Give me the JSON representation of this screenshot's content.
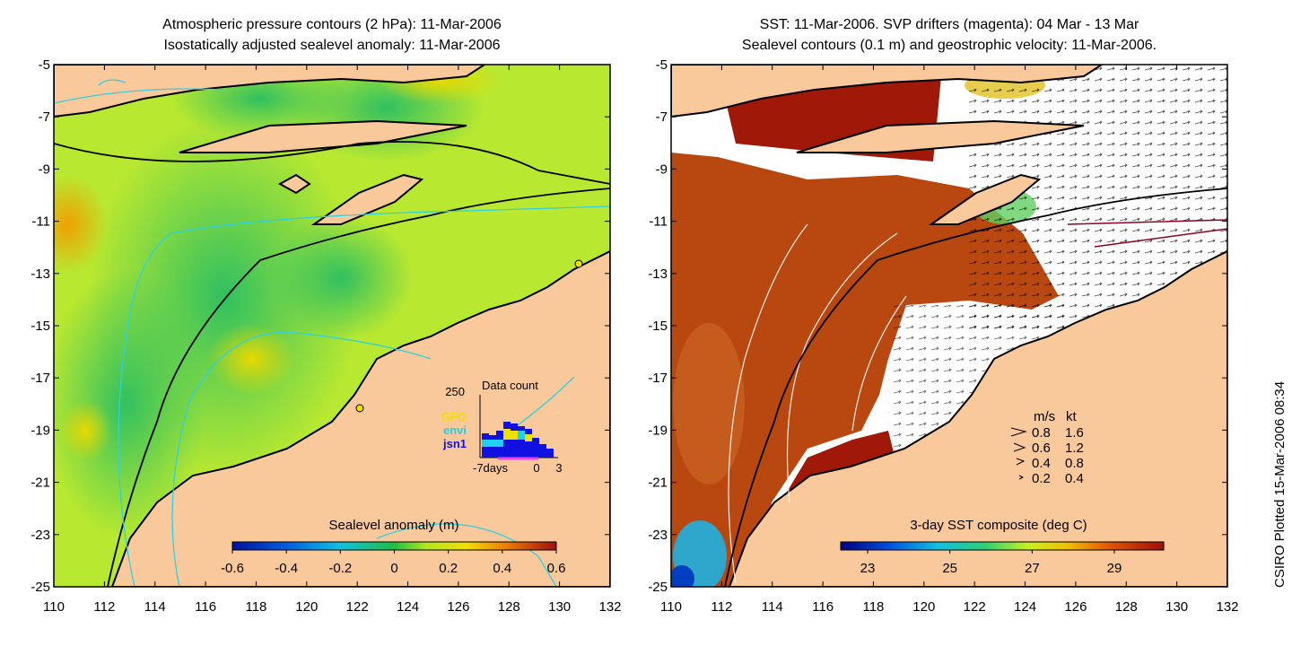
{
  "left_panel": {
    "title_line1": "Atmospheric pressure contours (2 hPa): 11-Mar-2006",
    "title_line2": "Isostatically adjusted sealevel anomaly: 11-Mar-2006",
    "colorbar_label": "Sealevel anomaly (m)",
    "colorbar_ticks": [
      "-0.6",
      "-0.4",
      "-0.2",
      "0",
      "0.2",
      "0.4",
      "0.6"
    ],
    "inset": {
      "max_label": "250",
      "title": "Data count",
      "legend": [
        {
          "name": "GFO",
          "color": "#f0e000"
        },
        {
          "name": "envi",
          "color": "#20d0f0"
        },
        {
          "name": "jsn1",
          "color": "#1010e0"
        }
      ],
      "xlabel_left": "-7days",
      "xlabel_mid": "0",
      "xlabel_right": "3"
    }
  },
  "right_panel": {
    "title_line1": "SST: 11-Mar-2006. SVP drifters (magenta): 04 Mar - 13 Mar",
    "title_line2": "Sealevel contours (0.1 m) and geostrophic velocity: 11-Mar-2006.",
    "colorbar_label": "3-day SST composite (deg C)",
    "colorbar_ticks": [
      "23",
      "25",
      "27",
      "29"
    ],
    "velocity_legend": {
      "header_ms": "m/s",
      "header_kt": "kt",
      "rows": [
        {
          "ms": "0.8",
          "kt": "1.6"
        },
        {
          "ms": "0.6",
          "kt": "1.2"
        },
        {
          "ms": "0.4",
          "kt": "0.8"
        },
        {
          "ms": "0.2",
          "kt": "0.4"
        }
      ]
    }
  },
  "axes": {
    "lat_ticks": [
      "-5",
      "-7",
      "-9",
      "-11",
      "-13",
      "-15",
      "-17",
      "-19",
      "-21",
      "-23",
      "-25"
    ],
    "lon_ticks": [
      "110",
      "112",
      "114",
      "116",
      "118",
      "120",
      "122",
      "124",
      "126",
      "128",
      "130",
      "132"
    ]
  },
  "footer": "CSIRO Plotted 15-Mar-2006 08:34",
  "colors": {
    "land": "#f9c89b",
    "sla_mean": "#a8e020",
    "sst_warm": "#b03010"
  }
}
